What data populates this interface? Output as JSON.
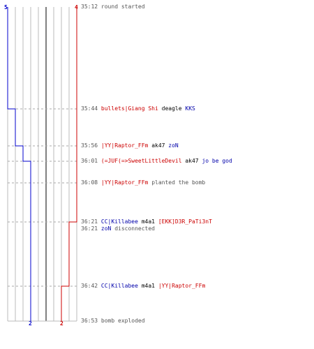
{
  "colors": {
    "red_team": "#cc0000",
    "blue_team": "#0000cc",
    "grid": "#bbbbbb",
    "grid_center": "#555555",
    "dash": "#aaaaaa"
  },
  "counts": {
    "blue_start": "5",
    "red_start": "4",
    "blue_end": "2",
    "red_end": "2"
  },
  "events": [
    {
      "time": "35:12",
      "parts": [
        {
          "text": "round started",
          "style": "gray"
        }
      ],
      "blue_alive": 5,
      "red_alive": 4
    },
    {
      "time": "35:44",
      "parts": [
        {
          "text": "bullets|Giang Shi",
          "style": "red"
        },
        {
          "text": "deagle",
          "style": "weapon"
        },
        {
          "text": "KKS",
          "style": "blue"
        }
      ],
      "blue_alive": 4,
      "red_alive": 4
    },
    {
      "time": "35:56",
      "parts": [
        {
          "text": "|YY|Raptor_FFm",
          "style": "red"
        },
        {
          "text": "ak47",
          "style": "weapon"
        },
        {
          "text": "zoN",
          "style": "blue"
        }
      ],
      "blue_alive": 3,
      "red_alive": 4
    },
    {
      "time": "36:01",
      "parts": [
        {
          "text": "(=JUF(=>SweetLittleDevil",
          "style": "red"
        },
        {
          "text": "ak47",
          "style": "weapon"
        },
        {
          "text": "jo be god",
          "style": "blue"
        }
      ],
      "blue_alive": 2,
      "red_alive": 4
    },
    {
      "time": "36:08",
      "parts": [
        {
          "text": "|YY|Raptor_FFm",
          "style": "red"
        },
        {
          "text": "planted the bomb",
          "style": "gray"
        }
      ],
      "blue_alive": 2,
      "red_alive": 4
    },
    {
      "time": "36:21",
      "parts": [
        {
          "text": "CC|Killabee",
          "style": "blue"
        },
        {
          "text": "m4a1",
          "style": "weapon"
        },
        {
          "text": "[EKK]D3R_PaTi3nT",
          "style": "red"
        }
      ],
      "blue_alive": 2,
      "red_alive": 3
    },
    {
      "time": "36:21",
      "parts": [
        {
          "text": "zoN",
          "style": "blue"
        },
        {
          "text": "disconnected",
          "style": "gray"
        }
      ],
      "blue_alive": 2,
      "red_alive": 3
    },
    {
      "time": "36:42",
      "parts": [
        {
          "text": "CC|Killabee",
          "style": "blue"
        },
        {
          "text": "m4a1",
          "style": "weapon"
        },
        {
          "text": "|YY|Raptor_FFm",
          "style": "red"
        }
      ],
      "blue_alive": 2,
      "red_alive": 2
    },
    {
      "time": "36:53",
      "parts": [
        {
          "text": "bomb exploded",
          "style": "gray"
        }
      ],
      "blue_alive": 2,
      "red_alive": 2
    }
  ]
}
